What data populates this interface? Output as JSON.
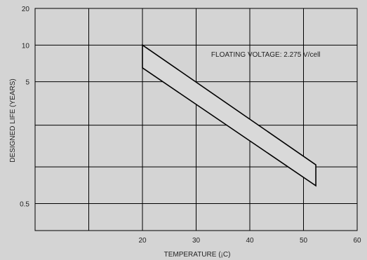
{
  "chart_data": {
    "type": "area",
    "xlabel": "TEMPERATURE (¡C)",
    "ylabel": "DESIGNED LIFE (YEARS)",
    "xlim": [
      0,
      60
    ],
    "x_ticks": [
      20,
      30,
      40,
      50,
      60
    ],
    "x_gridlines": [
      10,
      20,
      30,
      40,
      50,
      60
    ],
    "ylim": [
      0.3,
      20
    ],
    "y_scale": "log",
    "y_ticks": [
      {
        "value": 20,
        "label": "20"
      },
      {
        "value": 10,
        "label": "10"
      },
      {
        "value": 5,
        "label": "5"
      },
      {
        "value": 0.5,
        "label": "0.5"
      }
    ],
    "y_gridlines": [
      20,
      10,
      5,
      2.2,
      1,
      0.5,
      0.3
    ],
    "grid": true,
    "band": {
      "upper": {
        "x": [
          20,
          52.3
        ],
        "y": [
          10,
          1.04
        ]
      },
      "lower": {
        "x": [
          20,
          52.3
        ],
        "y": [
          6.5,
          0.7
        ]
      },
      "fill": "#d9d9d9",
      "stroke": "#000000"
    },
    "annotations": [
      {
        "text": "FLOATING VOLTAGE: 2.275 V/cell",
        "x": 32.8,
        "y": 8.0
      }
    ]
  }
}
